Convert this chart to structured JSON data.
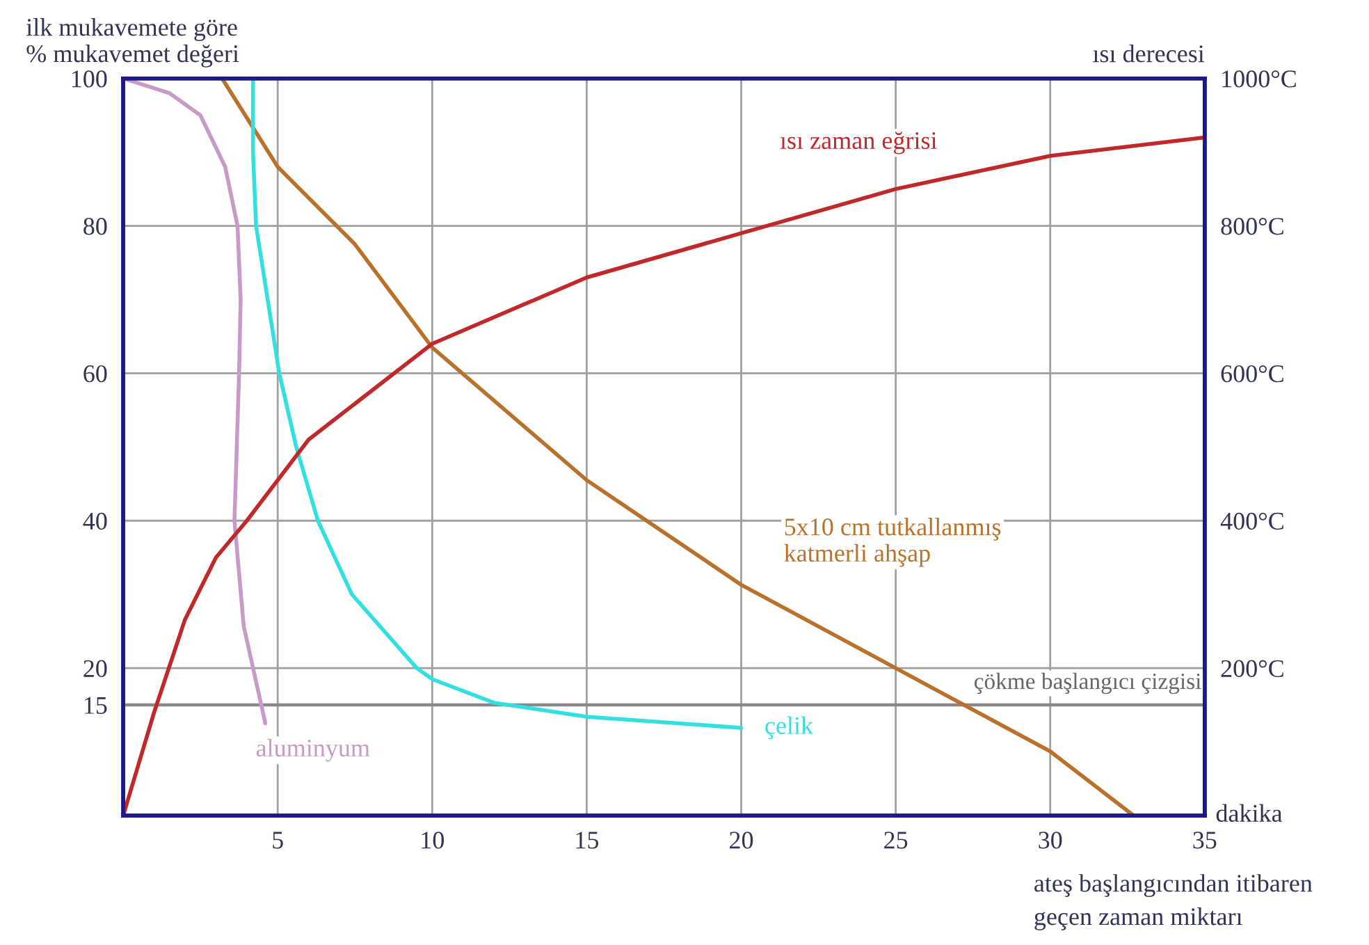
{
  "chart_data": {
    "type": "line",
    "ylabel": "ilk mukavemete göre\n% mukavemet değeri",
    "y2label": "ısı derecesi",
    "xlabel": "ateş başlangıcından itibaren\ngeçen zaman miktarı",
    "annotations": [
      "dakika"
    ],
    "xlim": [
      0,
      35
    ],
    "xticks": [
      {
        "value": 0,
        "label": null
      },
      5,
      10,
      15,
      20,
      25,
      30,
      35
    ],
    "ylim": [
      0,
      100
    ],
    "yticks": [
      {
        "value": 0,
        "label": null
      },
      15,
      20,
      40,
      60,
      80,
      100
    ],
    "y2lim": [
      0,
      1000
    ],
    "y2ticks": [
      {
        "value": 200,
        "label": "200°C"
      },
      {
        "value": 400,
        "label": "400°C"
      },
      {
        "value": 600,
        "label": "600°C"
      },
      {
        "value": 800,
        "label": "800°C"
      },
      {
        "value": 1000,
        "label": "1000°C"
      }
    ],
    "grid": true,
    "marker": "none",
    "line_style": "solid",
    "ref_lines": [
      {
        "axis": "y",
        "value": 15,
        "label": "çökme başlangıcı çizgisi",
        "color": "#888888"
      }
    ],
    "series": [
      {
        "name": "ısı zaman eğrisi",
        "color": "#c0282a",
        "axis": "y2",
        "x": [
          0,
          0.5,
          1,
          2,
          3,
          4,
          6,
          10,
          15,
          20,
          25,
          30,
          35
        ],
        "values": [
          0,
          70,
          140,
          266,
          350,
          400,
          510,
          640,
          730,
          790,
          850,
          895,
          920
        ]
      },
      {
        "name": "5x10 cm tutkallanmış\nkatmerli ahşap",
        "color": "#b8722c",
        "x": [
          3.2,
          5,
          7.5,
          10,
          15,
          20,
          25,
          30,
          32.7
        ],
        "values": [
          100,
          88,
          77.5,
          63.5,
          45.5,
          31.3,
          20,
          8.7,
          0
        ]
      },
      {
        "name": "çelik",
        "color": "#33e0e0",
        "x": [
          4.2,
          4.2,
          4.3,
          5.05,
          5.6,
          6.3,
          7.4,
          9.5,
          10,
          12,
          15,
          20
        ],
        "values": [
          100,
          90,
          80,
          60,
          50,
          40,
          30,
          20,
          18.5,
          15.3,
          13.4,
          11.9
        ]
      },
      {
        "name": "aluminyum",
        "color": "#c89ac8",
        "x": [
          0,
          1.5,
          2.5,
          3.3,
          3.7,
          3.8,
          3.75,
          3.6,
          3.9,
          4.6
        ],
        "values": [
          100,
          98,
          95,
          88,
          80,
          70,
          60,
          40,
          25.7,
          12.5
        ]
      }
    ]
  }
}
